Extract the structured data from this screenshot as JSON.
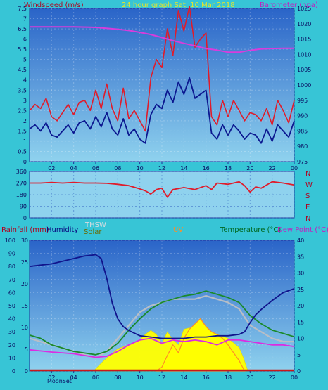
{
  "header": {
    "windspeed_label": "Windspeed (m/s)",
    "title": "24 hour graph Sat, 10 Mar 2018",
    "barometer_label": "Barometer (hpa)"
  },
  "wind_dir_labels": [
    "N",
    "W",
    "S",
    "E",
    "N"
  ],
  "bottom_labels": {
    "rainfall": "Rainfall (mm)",
    "humidity": "Humidity",
    "thsw": "THSW",
    "solar": "Solar",
    "uv": "UV",
    "temperature": "Temperature (°C)",
    "dewpoint": "Dew Point (°C)",
    "moonset": "MoonSet"
  },
  "colors": {
    "background": "#37c5d6",
    "plot_top": "#2a64c8",
    "plot_bottom": "#8fd2ee",
    "gust": "#e01b2a",
    "wind_avg": "#0c1890",
    "barometer": "#d83cdc",
    "direction": "#e01b2a",
    "humidity": "#11148c",
    "temperature": "#1a8a2a",
    "dewpoint": "#dc2ce2",
    "thsw": "#b8bec6",
    "solar": "#ffff00",
    "uv": "#ff8e24",
    "rain": "#c81818",
    "title": "#e8e628",
    "windspeed_label": "#b0001e",
    "barometer_label": "#c020c0",
    "rainfall_label": "#b0001e",
    "humidity_label": "#0a0a80",
    "thsw_label": "#d8dce0",
    "solar_label": "#6a6a00",
    "uv_label": "#ff8e24",
    "temperature_label": "#006820",
    "dewpoint_label": "#c020c0",
    "ns_label": "#b0001e"
  },
  "chart_data": [
    {
      "id": "wind",
      "type": "line",
      "xlabel": "",
      "x_ticks": [
        "02",
        "04",
        "06",
        "08",
        "10",
        "12",
        "14",
        "16",
        "18",
        "20",
        "22",
        "00"
      ],
      "y_left_ticks": [
        "0",
        "0.5",
        "1",
        "1.5",
        "2",
        "2.5",
        "3",
        "3.5",
        "4",
        "4.5",
        "5",
        "5.5",
        "6",
        "6.5",
        "7",
        "7.5"
      ],
      "y_right_ticks": [
        "975",
        "980",
        "985",
        "990",
        "995",
        "1000",
        "1005",
        "1010",
        "1015",
        "1020",
        "1025"
      ],
      "ylim_left": [
        0,
        7.5
      ],
      "ylim_right": [
        975,
        1025
      ],
      "xlim_hours": [
        0,
        24
      ],
      "grid": true,
      "series": [
        {
          "name": "Windspeed (m/s)",
          "role": "gust",
          "x": [
            0,
            0.5,
            1,
            1.5,
            2,
            2.5,
            3,
            3.5,
            4,
            4.5,
            5,
            5.5,
            6,
            6.5,
            7,
            7.5,
            8,
            8.5,
            9,
            9.5,
            10,
            10.5,
            11,
            11.5,
            12,
            12.5,
            13,
            13.5,
            14,
            14.5,
            15,
            15.5,
            16,
            16.5,
            17,
            17.5,
            18,
            18.5,
            19,
            19.5,
            20,
            20.5,
            21,
            21.5,
            22,
            22.5,
            23,
            23.5,
            24
          ],
          "values": [
            2.5,
            2.8,
            2.6,
            3.1,
            2.2,
            2.0,
            2.4,
            2.8,
            2.3,
            2.9,
            3.0,
            2.5,
            3.5,
            2.6,
            3.8,
            2.6,
            2.0,
            3.6,
            2.1,
            2.5,
            2.0,
            1.5,
            4.1,
            5.0,
            4.6,
            6.5,
            5.2,
            7.4,
            6.4,
            7.6,
            5.6,
            6.0,
            6.3,
            2.2,
            1.8,
            3.0,
            2.2,
            3.0,
            2.5,
            2.0,
            2.4,
            2.3,
            2.0,
            2.6,
            1.8,
            3.0,
            2.5,
            1.9,
            3.0
          ]
        },
        {
          "name": "Wind average",
          "role": "average",
          "x": [
            0,
            0.5,
            1,
            1.5,
            2,
            2.5,
            3,
            3.5,
            4,
            4.5,
            5,
            5.5,
            6,
            6.5,
            7,
            7.5,
            8,
            8.5,
            9,
            9.5,
            10,
            10.5,
            11,
            11.5,
            12,
            12.5,
            13,
            13.5,
            14,
            14.5,
            15,
            15.5,
            16,
            16.5,
            17,
            17.5,
            18,
            18.5,
            19,
            19.5,
            20,
            20.5,
            21,
            21.5,
            22,
            22.5,
            23,
            23.5,
            24
          ],
          "values": [
            1.6,
            1.8,
            1.5,
            1.9,
            1.3,
            1.2,
            1.5,
            1.8,
            1.4,
            1.9,
            2.0,
            1.6,
            2.2,
            1.7,
            2.4,
            1.6,
            1.3,
            2.1,
            1.3,
            1.6,
            1.1,
            0.9,
            2.3,
            2.8,
            2.6,
            3.5,
            2.9,
            3.9,
            3.3,
            4.1,
            3.1,
            3.3,
            3.5,
            1.4,
            1.1,
            1.8,
            1.3,
            1.8,
            1.5,
            1.1,
            1.4,
            1.3,
            0.9,
            1.6,
            1.0,
            1.8,
            1.5,
            1.2,
            2.0
          ]
        },
        {
          "name": "Barometer (hpa)",
          "role": "barometer",
          "x": [
            0,
            2,
            4,
            6,
            8,
            9,
            10,
            11,
            12,
            13,
            14,
            15,
            16,
            17,
            18,
            19,
            20,
            21,
            22,
            23,
            24
          ],
          "values": [
            1019.0,
            1019.0,
            1019.0,
            1018.8,
            1018.2,
            1017.8,
            1017.2,
            1016.5,
            1015.5,
            1014.5,
            1013.6,
            1012.8,
            1011.9,
            1011.4,
            1010.7,
            1010.7,
            1011.3,
            1011.8,
            1011.9,
            1012.0,
            1012.0
          ]
        }
      ]
    },
    {
      "id": "direction",
      "type": "line",
      "y_ticks": [
        "0",
        "90",
        "180",
        "270",
        "360"
      ],
      "ylim": [
        0,
        360
      ],
      "xlim_hours": [
        0,
        24
      ],
      "series": [
        {
          "name": "Wind direction",
          "x": [
            0,
            1,
            2,
            3,
            4,
            5,
            6,
            7,
            8,
            9,
            10,
            10.5,
            11,
            11.5,
            12,
            12.5,
            13,
            14,
            15,
            16,
            16.5,
            17,
            18,
            19,
            19.5,
            20,
            20.5,
            21,
            22,
            23,
            24
          ],
          "values": [
            270,
            270,
            275,
            270,
            275,
            270,
            270,
            268,
            260,
            250,
            225,
            210,
            185,
            220,
            230,
            160,
            220,
            235,
            220,
            250,
            220,
            270,
            260,
            280,
            250,
            200,
            240,
            230,
            280,
            270,
            255
          ]
        }
      ]
    },
    {
      "id": "climate",
      "type": "line",
      "x_ticks": [
        "02",
        "04",
        "06",
        "08",
        "10",
        "12",
        "14",
        "16",
        "18",
        "20",
        "22",
        "00"
      ],
      "rain_ticks": [
        "0",
        "5",
        "10",
        "15",
        "20",
        "25",
        "30"
      ],
      "humidity_ticks": [
        "0",
        "10",
        "20",
        "30",
        "40",
        "50",
        "60",
        "70",
        "80",
        "90",
        "100"
      ],
      "temp_ticks": [
        "0",
        "5",
        "10",
        "15",
        "20",
        "25",
        "30",
        "35",
        "40"
      ],
      "ylim_rain": [
        0,
        30
      ],
      "ylim_humidity": [
        0,
        100
      ],
      "ylim_temp": [
        0,
        40
      ],
      "xlim_hours": [
        0,
        24
      ],
      "grid": true,
      "series": [
        {
          "name": "Humidity",
          "axis": "humidity",
          "x": [
            0,
            1,
            2,
            3,
            4,
            5,
            6,
            6.5,
            7,
            7.5,
            8,
            8.5,
            9,
            10,
            11,
            12,
            13,
            14,
            15,
            16,
            17,
            18,
            19,
            19.5,
            20,
            20.5,
            21,
            22,
            23,
            24
          ],
          "values": [
            80,
            81,
            82,
            84,
            86,
            88,
            89,
            86,
            71,
            52,
            40,
            34,
            31,
            27,
            26,
            25,
            25,
            25,
            26,
            26,
            27,
            27,
            28,
            30,
            37,
            43,
            47,
            54,
            60,
            63
          ]
        },
        {
          "name": "Temperature (°C)",
          "axis": "temp",
          "x": [
            0,
            1,
            2,
            3,
            4,
            5,
            6,
            7,
            8,
            9,
            10,
            11,
            12,
            13,
            14,
            15,
            16,
            17,
            18,
            19,
            20,
            21,
            22,
            23,
            24
          ],
          "values": [
            11,
            10,
            8,
            7,
            6,
            5.5,
            5,
            6,
            8.5,
            12.5,
            16,
            19,
            21,
            22,
            23,
            23.5,
            24.5,
            23.5,
            22.5,
            21,
            17,
            14.5,
            12.5,
            11.5,
            10.5
          ]
        },
        {
          "name": "THSW",
          "axis": "temp",
          "x": [
            0,
            3,
            6,
            7,
            8,
            9,
            10,
            11,
            12,
            13,
            14,
            15,
            16,
            17,
            18,
            19,
            20,
            21,
            22,
            23,
            24
          ],
          "values": [
            10,
            7,
            4,
            6,
            10,
            14,
            18,
            20,
            21,
            22,
            22,
            22,
            23,
            22,
            21,
            19,
            14,
            12,
            10,
            9,
            9
          ]
        },
        {
          "name": "Dew Point (°C)",
          "axis": "temp",
          "x": [
            0,
            2,
            4,
            6,
            7,
            8,
            9,
            10,
            11,
            12,
            13,
            14,
            15,
            16,
            17,
            18,
            19,
            20,
            21,
            22,
            23,
            24
          ],
          "values": [
            6.5,
            5.8,
            5.3,
            4.2,
            4.5,
            6.0,
            8.0,
            9.5,
            10.0,
            8.5,
            9.5,
            9.0,
            9.5,
            9.0,
            8.0,
            9.5,
            9.5,
            9.0,
            8.5,
            8.0,
            8.0,
            7.5
          ]
        },
        {
          "name": "Solar",
          "axis": "humidity",
          "x": [
            5.8,
            6.5,
            7,
            8,
            9,
            10,
            10.5,
            11,
            11.5,
            12,
            12.5,
            13,
            13.5,
            14,
            14.5,
            15,
            16,
            17,
            18,
            19,
            19.4,
            19.8
          ],
          "values": [
            0,
            6,
            10,
            17,
            20,
            24,
            28,
            31,
            28,
            21,
            30,
            24,
            20,
            32,
            33,
            30,
            32,
            28,
            25,
            18,
            10,
            0
          ]
        },
        {
          "name": "UV",
          "axis": "humidity",
          "x": [
            11.5,
            12,
            12.5,
            13,
            13.5,
            14,
            14.5,
            15,
            15.5,
            16,
            16.5,
            17,
            17.5,
            18,
            18.5,
            19,
            19.5
          ],
          "values": [
            0,
            3,
            12,
            20,
            14,
            25,
            32,
            36,
            40,
            34,
            30,
            28,
            25,
            20,
            14,
            8,
            0
          ]
        },
        {
          "name": "Rainfall (mm)",
          "axis": "rain",
          "x": [
            0,
            24
          ],
          "values": [
            0,
            0
          ]
        }
      ]
    }
  ]
}
